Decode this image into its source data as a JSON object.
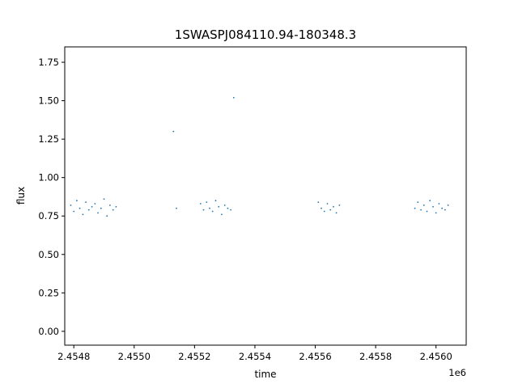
{
  "chart_data": {
    "type": "scatter",
    "title": "1SWASPJ084110.94-180348.3",
    "xlabel": "time",
    "ylabel": "flux",
    "x_offset_label": "1e6",
    "xlim": [
      2454770,
      2456100
    ],
    "ylim": [
      -0.09,
      1.85
    ],
    "x_ticks": [
      {
        "value": 2454800,
        "label": "2.4548"
      },
      {
        "value": 2455000,
        "label": "2.4550"
      },
      {
        "value": 2455200,
        "label": "2.4552"
      },
      {
        "value": 2455400,
        "label": "2.4554"
      },
      {
        "value": 2455600,
        "label": "2.4556"
      },
      {
        "value": 2455800,
        "label": "2.4558"
      },
      {
        "value": 2456000,
        "label": "2.4560"
      }
    ],
    "y_ticks": [
      {
        "value": 0.0,
        "label": "0.00"
      },
      {
        "value": 0.25,
        "label": "0.25"
      },
      {
        "value": 0.5,
        "label": "0.50"
      },
      {
        "value": 0.75,
        "label": "0.75"
      },
      {
        "value": 1.0,
        "label": "1.00"
      },
      {
        "value": 1.25,
        "label": "1.25"
      },
      {
        "value": 1.5,
        "label": "1.50"
      },
      {
        "value": 1.75,
        "label": "1.75"
      }
    ],
    "point_color": "#1f77b4",
    "grid": false,
    "legend": "none",
    "series": [
      {
        "x": [
          2454790,
          2454800,
          2454810,
          2454820,
          2454830,
          2454840,
          2454850,
          2454860,
          2454870,
          2454880,
          2454890,
          2454900,
          2454910,
          2454920,
          2454930,
          2454940,
          2455220,
          2455230,
          2455240,
          2455250,
          2455260,
          2455270,
          2455280,
          2455290,
          2455300,
          2455310,
          2455320,
          2455610,
          2455620,
          2455630,
          2455640,
          2455650,
          2455660,
          2455670,
          2455680,
          2455930,
          2455940,
          2455950,
          2455960,
          2455970,
          2455980,
          2455990,
          2456000,
          2456010,
          2456020,
          2456030,
          2456040,
          2455130,
          2455140,
          2455330
        ],
        "y": [
          0.82,
          0.78,
          0.85,
          0.8,
          0.76,
          0.84,
          0.79,
          0.81,
          0.83,
          0.77,
          0.8,
          0.86,
          0.75,
          0.82,
          0.79,
          0.81,
          0.83,
          0.79,
          0.84,
          0.8,
          0.78,
          0.85,
          0.81,
          0.76,
          0.82,
          0.8,
          0.79,
          0.84,
          0.8,
          0.78,
          0.83,
          0.79,
          0.81,
          0.77,
          0.82,
          0.8,
          0.84,
          0.79,
          0.82,
          0.78,
          0.85,
          0.81,
          0.77,
          0.83,
          0.8,
          0.79,
          0.82,
          1.3,
          0.8,
          1.52
        ]
      }
    ]
  }
}
